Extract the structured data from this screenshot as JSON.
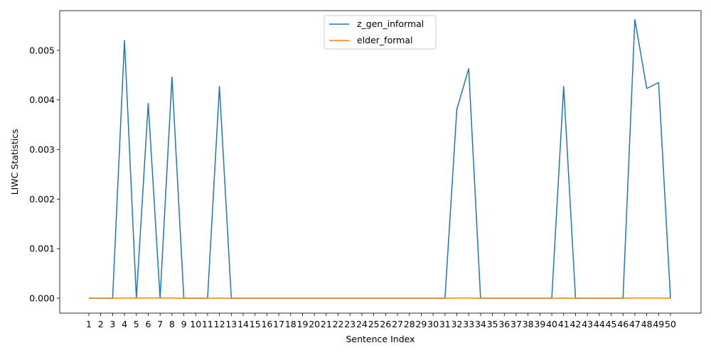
{
  "chart_data": {
    "type": "line",
    "title": "",
    "xlabel": "Sentence Index",
    "ylabel": "LIWC Statistics",
    "x": [
      1,
      2,
      3,
      4,
      5,
      6,
      7,
      8,
      9,
      10,
      11,
      12,
      13,
      14,
      15,
      16,
      17,
      18,
      19,
      20,
      21,
      22,
      23,
      24,
      25,
      26,
      27,
      28,
      29,
      30,
      31,
      32,
      33,
      34,
      35,
      36,
      37,
      38,
      39,
      40,
      41,
      42,
      43,
      44,
      45,
      46,
      47,
      48,
      49,
      50
    ],
    "ylim": [
      -0.0003,
      0.0058
    ],
    "yticks": [
      "0.000",
      "0.001",
      "0.002",
      "0.003",
      "0.004",
      "0.005"
    ],
    "yticks_values": [
      0,
      0.001,
      0.002,
      0.003,
      0.004,
      0.005
    ],
    "grid": false,
    "legend_position": "upper center",
    "series": [
      {
        "name": "z_gen_informal",
        "color": "#1f77b4",
        "values": [
          0,
          0,
          0,
          0.0052,
          0,
          0.00393,
          0,
          0.00446,
          0,
          0,
          0,
          0.00427,
          0,
          0,
          0,
          0,
          0,
          0,
          0,
          0,
          0,
          0,
          0,
          0,
          0,
          0,
          0,
          0,
          0,
          0,
          0,
          0.00381,
          0.00463,
          0,
          0,
          0,
          0,
          0,
          0,
          0,
          0.00427,
          0,
          0,
          0,
          0,
          0,
          0.00562,
          0.00423,
          0.00435,
          0
        ]
      },
      {
        "name": "elder_formal",
        "color": "#ff7f0e",
        "values": [
          0,
          0,
          0,
          5e-06,
          5e-06,
          5e-06,
          5e-06,
          5e-06,
          0,
          0,
          0,
          5e-06,
          0,
          0,
          0,
          0,
          0,
          0,
          0,
          0,
          0,
          0,
          0,
          0,
          0,
          0,
          0,
          0,
          0,
          0,
          0,
          5e-06,
          5e-06,
          0,
          0,
          0,
          0,
          0,
          0,
          0,
          5e-06,
          0,
          0,
          0,
          0,
          0,
          5e-06,
          5e-06,
          5e-06,
          0
        ]
      }
    ]
  }
}
